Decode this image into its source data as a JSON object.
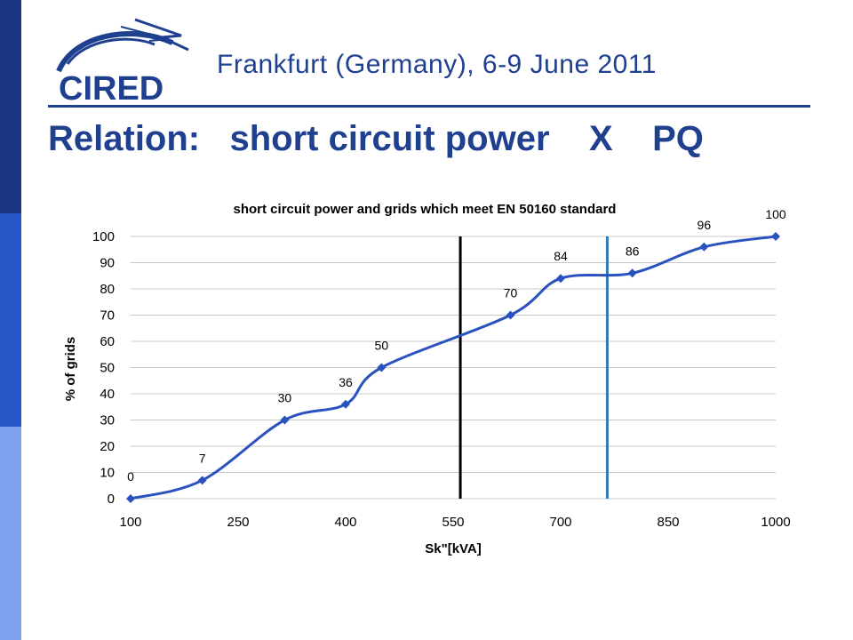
{
  "colors": {
    "brand_dark": "#1a3580",
    "brand_mid": "#2757c9",
    "brand_light": "#7ea0ee",
    "title_blue": "#1f3f8f",
    "series_line": "#2a52be",
    "marker_vline_black": "#000000",
    "marker_vline_blue": "#2f7ab8",
    "grid": "#c8c8c8"
  },
  "header": {
    "logo_text": "CIRED",
    "conference": "Frankfurt (Germany), 6-9 June 2011"
  },
  "slide": {
    "title": "Relation:   short circuit power    X    PQ"
  },
  "chart_data": {
    "type": "line",
    "title": "short circuit power and grids which meet EN 50160 standard",
    "xlabel": "Sk\"[kVA]",
    "ylabel": "% of grids",
    "x_ticks": [
      "100",
      "250",
      "400",
      "550",
      "700",
      "850",
      "1000"
    ],
    "y_ticks": [
      0,
      10,
      20,
      30,
      40,
      50,
      60,
      70,
      80,
      90,
      100
    ],
    "ylim": [
      0,
      100
    ],
    "grid": true,
    "legend": "none",
    "x_scale_note": "categorical tick spacing; ticks at 100,250,400,550,700,850,1000",
    "series": [
      {
        "points": [
          {
            "x": 100,
            "y": 0,
            "label": "0"
          },
          {
            "x": 200,
            "y": 7,
            "label": "7"
          },
          {
            "x": 315,
            "y": 30,
            "label": "30"
          },
          {
            "x": 400,
            "y": 36,
            "label": "36"
          },
          {
            "x": 450,
            "y": 50,
            "label": "50"
          },
          {
            "x": 630,
            "y": 70,
            "label": "70"
          },
          {
            "x": 700,
            "y": 84,
            "label": "84"
          },
          {
            "x": 800,
            "y": 86,
            "label": "86"
          },
          {
            "x": 900,
            "y": 96,
            "label": "96"
          },
          {
            "x": 1000,
            "y": 100,
            "label": "100"
          }
        ]
      }
    ],
    "reference_lines": [
      {
        "x": 560,
        "color": "#000000"
      },
      {
        "x": 765,
        "color": "#2f7ab8"
      }
    ]
  }
}
